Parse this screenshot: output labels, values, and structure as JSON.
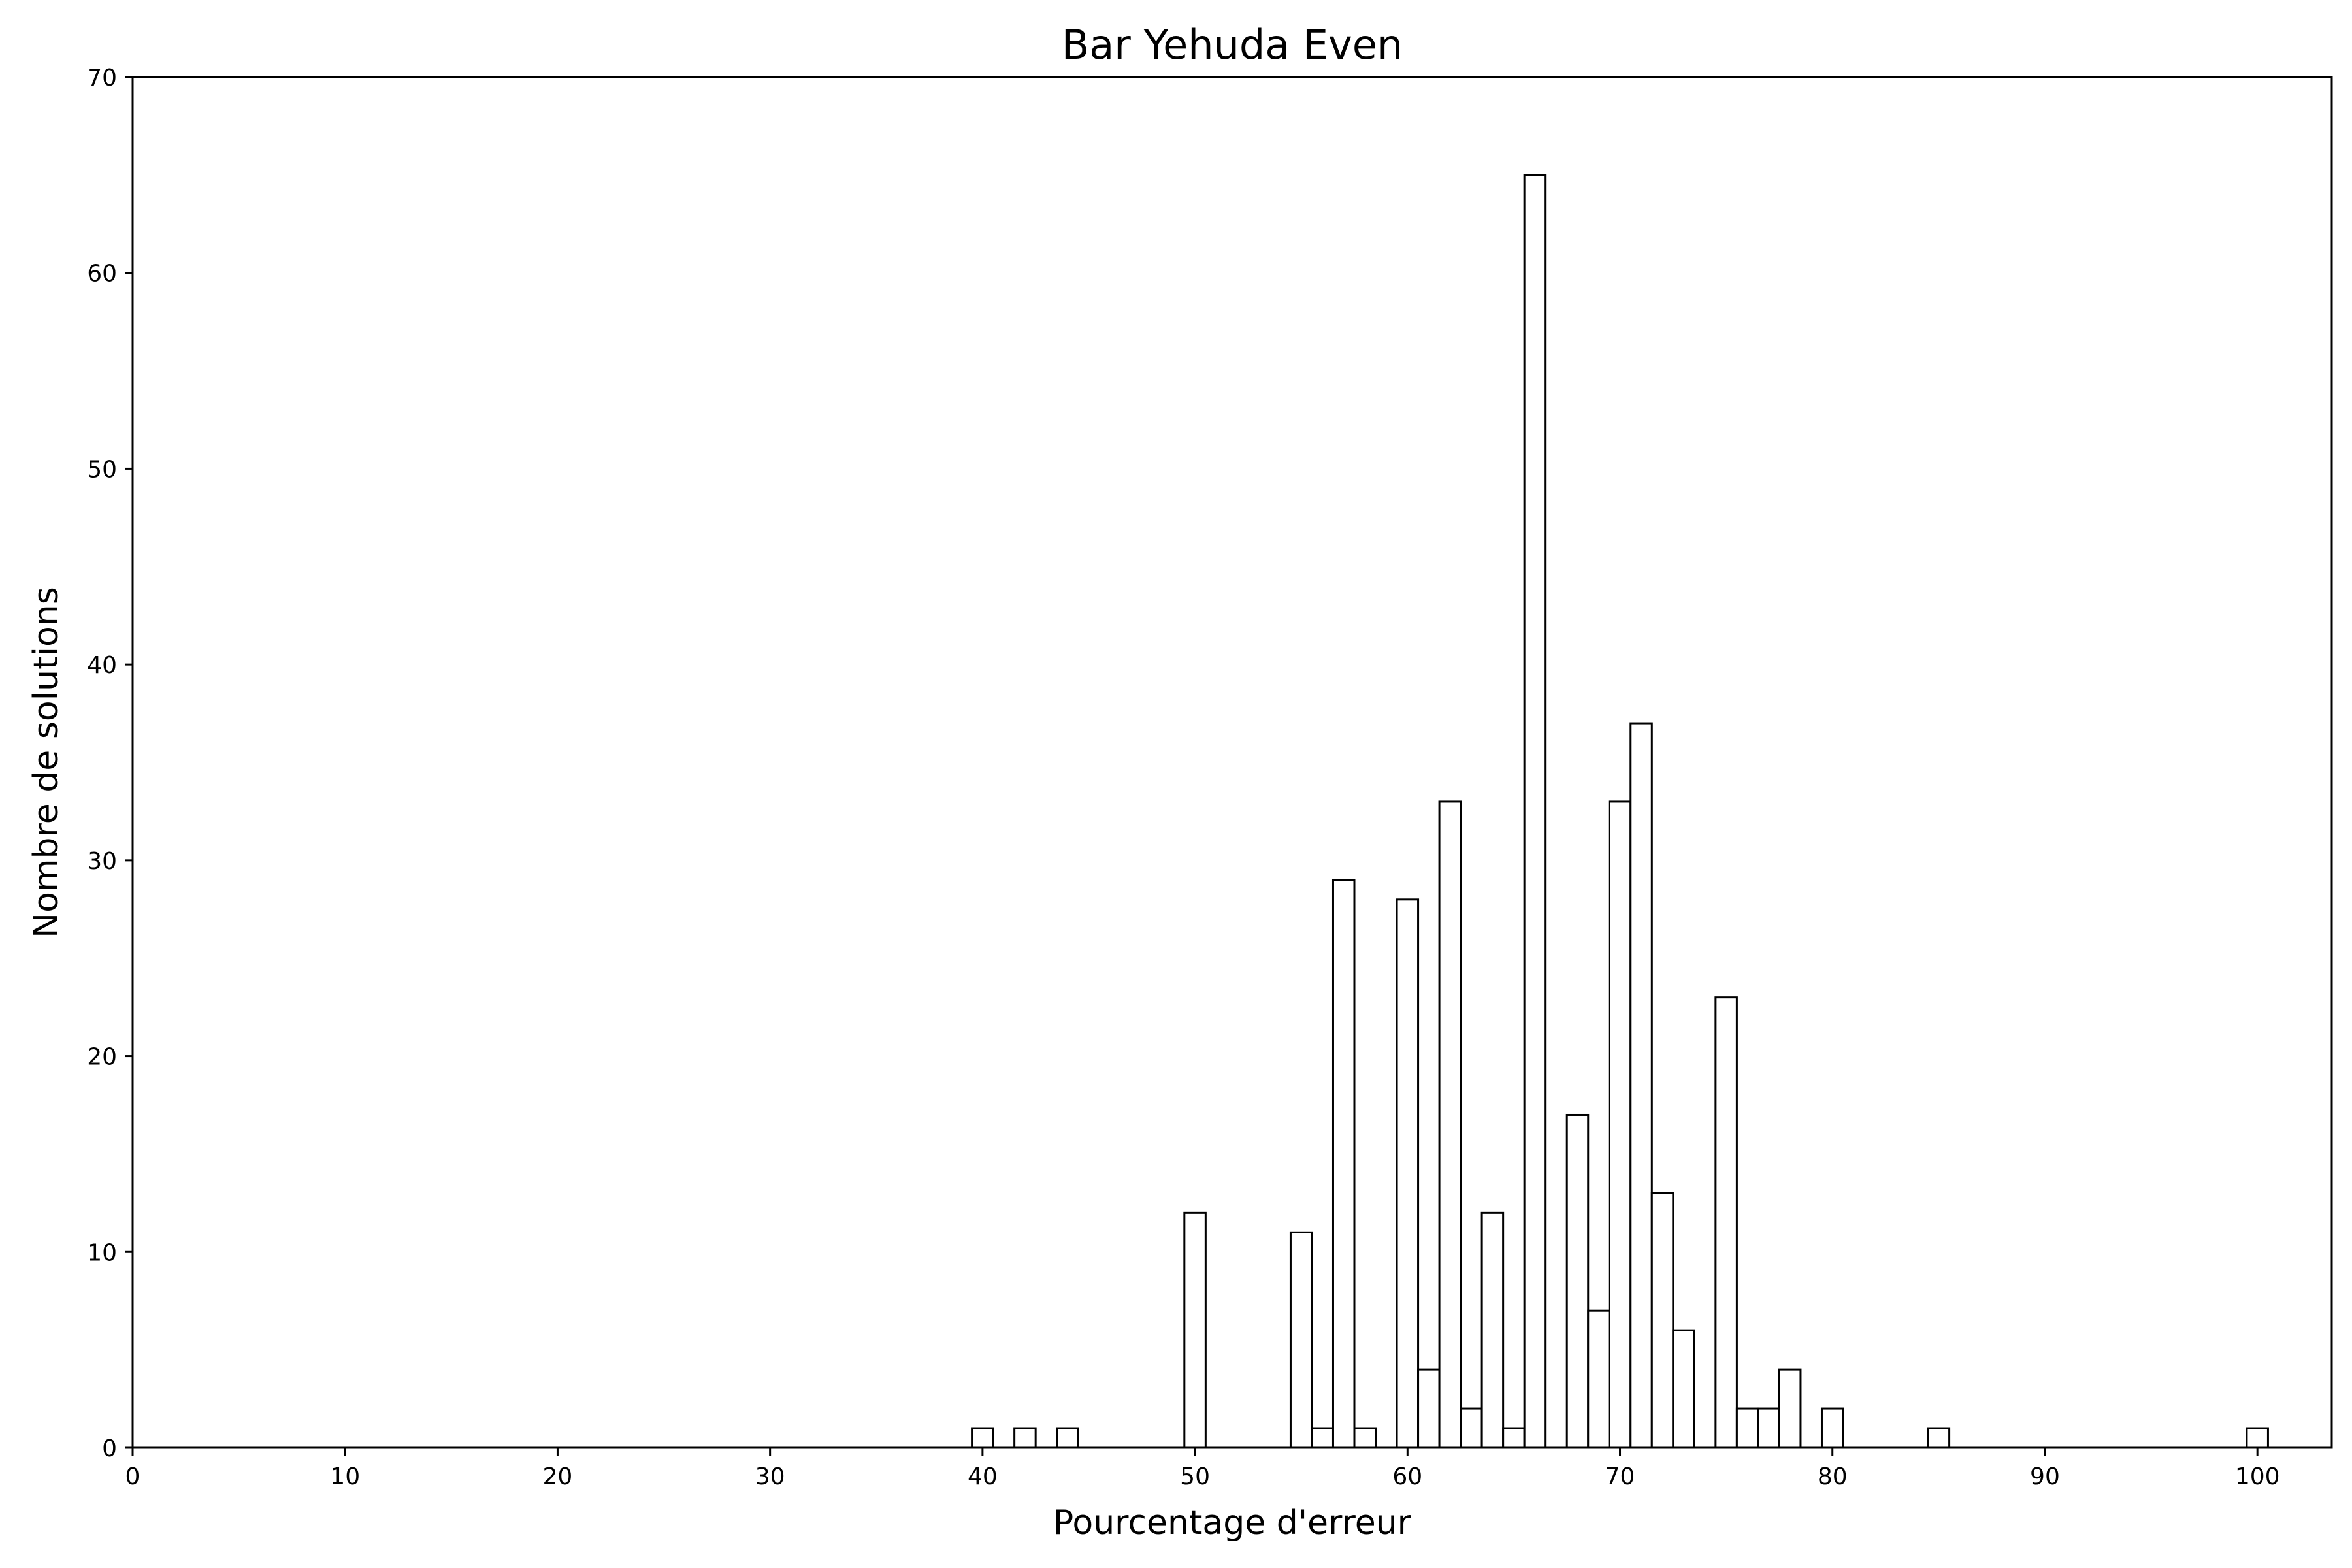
{
  "chart_data": {
    "type": "bar",
    "title": "Bar Yehuda Even",
    "xlabel": "Pourcentage d'erreur",
    "ylabel": "Nombre de solutions",
    "xlim": [
      0,
      103.5
    ],
    "ylim": [
      0,
      70
    ],
    "xticks": [
      0,
      10,
      20,
      30,
      40,
      50,
      60,
      70,
      80,
      90,
      100
    ],
    "yticks": [
      0,
      10,
      20,
      30,
      40,
      50,
      60,
      70
    ],
    "bar_width": 1,
    "grid": false,
    "bar_fill": "#ffffff",
    "bar_edge": "#000000",
    "x": [
      40,
      42,
      44,
      50,
      55,
      56,
      57,
      58,
      60,
      61,
      62,
      63,
      64,
      65,
      66,
      68,
      69,
      70,
      71,
      72,
      73,
      75,
      76,
      77,
      78,
      80,
      85,
      100
    ],
    "values": [
      1,
      1,
      1,
      12,
      11,
      1,
      29,
      1,
      28,
      4,
      33,
      2,
      12,
      1,
      65,
      17,
      7,
      33,
      37,
      13,
      6,
      23,
      2,
      2,
      4,
      2,
      1,
      1
    ]
  }
}
